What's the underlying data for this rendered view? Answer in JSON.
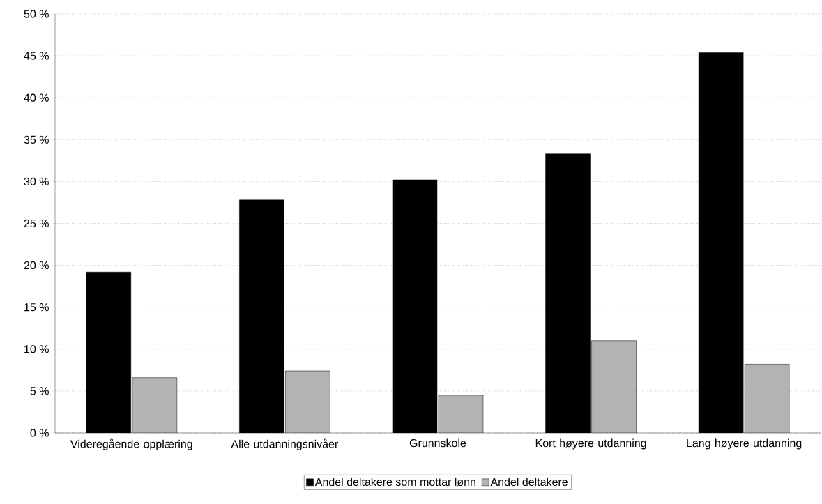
{
  "chart_data": {
    "type": "bar",
    "categories": [
      "Videregående opplæring",
      "Alle utdanningsnivåer",
      "Grunnskole",
      "Kort høyere utdanning",
      "Lang høyere utdanning"
    ],
    "series": [
      {
        "name": "Andel deltakere som mottar lønn",
        "color": "#000000",
        "values": [
          19.2,
          27.8,
          30.2,
          33.3,
          45.4
        ]
      },
      {
        "name": "Andel deltakere",
        "color": "#b3b3b3",
        "values": [
          6.6,
          7.4,
          4.5,
          11.0,
          8.2
        ]
      }
    ],
    "ylim": [
      0,
      50
    ],
    "yticks": [
      {
        "value": 0,
        "label": "0 %"
      },
      {
        "value": 5,
        "label": "5 %"
      },
      {
        "value": 10,
        "label": "10 %"
      },
      {
        "value": 15,
        "label": "15 %"
      },
      {
        "value": 20,
        "label": "20 %"
      },
      {
        "value": 25,
        "label": "25 %"
      },
      {
        "value": 30,
        "label": "30 %"
      },
      {
        "value": 35,
        "label": "35 %"
      },
      {
        "value": 40,
        "label": "40 %"
      },
      {
        "value": 45,
        "label": "45 %"
      },
      {
        "value": 50,
        "label": "50 %"
      }
    ],
    "grid": "y",
    "legend": "bottom"
  }
}
